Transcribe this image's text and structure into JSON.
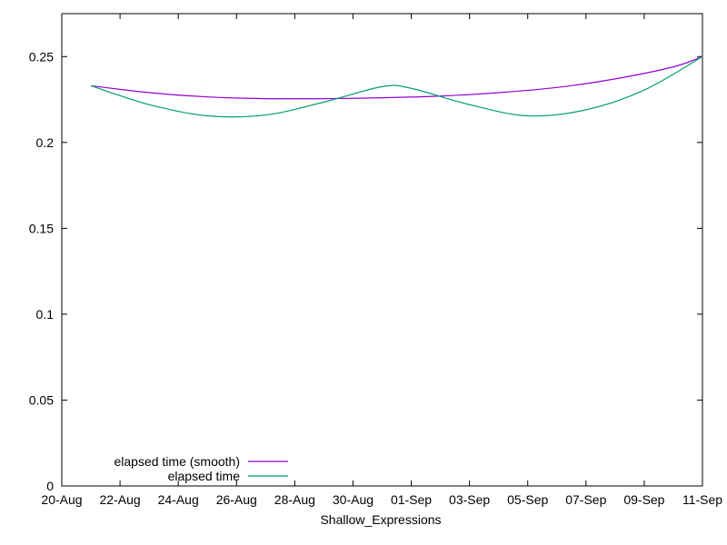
{
  "chart_data": {
    "type": "line",
    "title": "",
    "xlabel": "Shallow_Expressions",
    "ylabel": "",
    "x_axis": {
      "type": "date",
      "range": [
        "2020-08-20",
        "2020-09-11"
      ],
      "ticks": [
        {
          "date": "2020-08-20",
          "label": "20-Aug"
        },
        {
          "date": "2020-08-22",
          "label": "22-Aug"
        },
        {
          "date": "2020-08-24",
          "label": "24-Aug"
        },
        {
          "date": "2020-08-26",
          "label": "26-Aug"
        },
        {
          "date": "2020-08-28",
          "label": "28-Aug"
        },
        {
          "date": "2020-08-30",
          "label": "30-Aug"
        },
        {
          "date": "2020-09-01",
          "label": "01-Sep"
        },
        {
          "date": "2020-09-03",
          "label": "03-Sep"
        },
        {
          "date": "2020-09-05",
          "label": "05-Sep"
        },
        {
          "date": "2020-09-07",
          "label": "07-Sep"
        },
        {
          "date": "2020-09-09",
          "label": "09-Sep"
        },
        {
          "date": "2020-09-11",
          "label": "11-Sep"
        }
      ]
    },
    "y_axis": {
      "ylim": [
        0,
        0.275
      ],
      "ticks": [
        {
          "value": 0,
          "label": "0"
        },
        {
          "value": 0.05,
          "label": "0.05"
        },
        {
          "value": 0.1,
          "label": "0.1"
        },
        {
          "value": 0.15,
          "label": "0.15"
        },
        {
          "value": 0.2,
          "label": "0.2"
        },
        {
          "value": 0.25,
          "label": "0.25"
        }
      ]
    },
    "grid": false,
    "legend": "bottom-left",
    "series": [
      {
        "name": "elapsed time (smooth)",
        "color": "#9400d3",
        "points": [
          {
            "x": "2020-08-21",
            "y": 0.233
          },
          {
            "x": "2020-08-23",
            "y": 0.229
          },
          {
            "x": "2020-08-25",
            "y": 0.2265
          },
          {
            "x": "2020-08-27",
            "y": 0.2255
          },
          {
            "x": "2020-08-29",
            "y": 0.2255
          },
          {
            "x": "2020-08-31",
            "y": 0.226
          },
          {
            "x": "2020-09-02",
            "y": 0.227
          },
          {
            "x": "2020-09-04",
            "y": 0.229
          },
          {
            "x": "2020-09-06",
            "y": 0.232
          },
          {
            "x": "2020-09-08",
            "y": 0.237
          },
          {
            "x": "2020-09-10",
            "y": 0.244
          },
          {
            "x": "2020-09-11",
            "y": 0.25
          }
        ]
      },
      {
        "name": "elapsed time",
        "color": "#009e73",
        "points": [
          {
            "x": "2020-08-21",
            "y": 0.233
          },
          {
            "x": "2020-08-23",
            "y": 0.222
          },
          {
            "x": "2020-08-25",
            "y": 0.2155
          },
          {
            "x": "2020-08-27",
            "y": 0.216
          },
          {
            "x": "2020-08-29",
            "y": 0.2235
          },
          {
            "x": "2020-08-31",
            "y": 0.2325
          },
          {
            "x": "2020-09-01",
            "y": 0.2315
          },
          {
            "x": "2020-09-03",
            "y": 0.222
          },
          {
            "x": "2020-09-05",
            "y": 0.2155
          },
          {
            "x": "2020-09-07",
            "y": 0.219
          },
          {
            "x": "2020-09-09",
            "y": 0.2305
          },
          {
            "x": "2020-09-11",
            "y": 0.25
          }
        ]
      }
    ]
  }
}
